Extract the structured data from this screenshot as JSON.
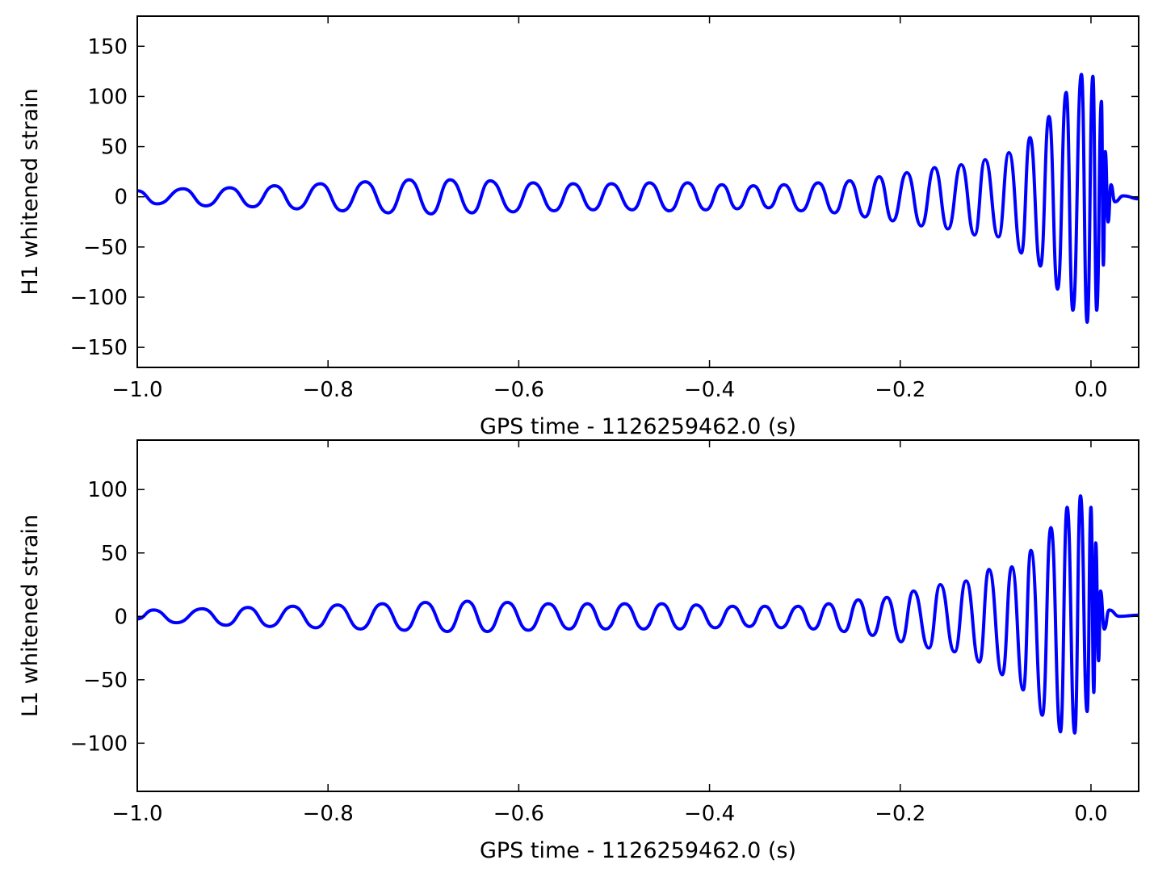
{
  "chart_data": [
    {
      "type": "line",
      "xlabel": "GPS time - 1126259462.0 (s)",
      "ylabel": "H1 whitened strain",
      "color": "#0000ff",
      "xlim": [
        -1.0,
        0.05
      ],
      "ylim": [
        -170,
        180
      ],
      "xticks": [
        {
          "value": -1.0,
          "label": "−1.0"
        },
        {
          "value": -0.8,
          "label": "−0.8"
        },
        {
          "value": -0.6,
          "label": "−0.6"
        },
        {
          "value": -0.4,
          "label": "−0.4"
        },
        {
          "value": -0.2,
          "label": "−0.2"
        },
        {
          "value": 0.0,
          "label": "0.0"
        }
      ],
      "yticks": [
        {
          "value": -150,
          "label": "−150"
        },
        {
          "value": -100,
          "label": "−100"
        },
        {
          "value": -50,
          "label": "−50"
        },
        0,
        50,
        100,
        150
      ],
      "x": [
        -1.0,
        -0.979,
        -0.952,
        -0.928,
        -0.903,
        -0.879,
        -0.856,
        -0.833,
        -0.808,
        -0.785,
        -0.761,
        -0.737,
        -0.715,
        -0.692,
        -0.672,
        -0.649,
        -0.63,
        -0.606,
        -0.585,
        -0.563,
        -0.543,
        -0.522,
        -0.503,
        -0.481,
        -0.463,
        -0.442,
        -0.423,
        -0.404,
        -0.387,
        -0.371,
        -0.354,
        -0.338,
        -0.322,
        -0.304,
        -0.286,
        -0.269,
        -0.253,
        -0.237,
        -0.222,
        -0.208,
        -0.193,
        -0.178,
        -0.164,
        -0.15,
        -0.136,
        -0.122,
        -0.111,
        -0.097,
        -0.086,
        -0.073,
        -0.064,
        -0.053,
        -0.044,
        -0.035,
        -0.026,
        -0.019,
        -0.01,
        -0.004,
        0.002,
        0.006,
        0.011,
        0.013,
        0.015,
        0.018,
        0.021,
        0.025,
        0.034,
        0.05
      ],
      "values": [
        6,
        -7,
        8,
        -9,
        9,
        -10,
        11,
        -12,
        13,
        -14,
        15,
        -16,
        17,
        -17,
        17,
        -16,
        16,
        -15,
        14,
        -14,
        13,
        -13,
        13,
        -13,
        14,
        -14,
        14,
        -13,
        12,
        -12,
        11,
        -11,
        12,
        -14,
        14,
        -16,
        16,
        -20,
        20,
        -24,
        24,
        -29,
        29,
        -32,
        32,
        -38,
        37,
        -40,
        44,
        -56,
        59,
        -69,
        80,
        -92,
        104,
        -113,
        122,
        -125,
        120,
        -113,
        95,
        -68,
        45,
        -25,
        12,
        -5,
        1,
        -2
      ]
    },
    {
      "type": "line",
      "xlabel": "GPS time - 1126259462.0 (s)",
      "ylabel": "L1 whitened strain",
      "color": "#0000ff",
      "xlim": [
        -1.0,
        0.05
      ],
      "ylim": [
        -138,
        139
      ],
      "xticks": [
        {
          "value": -1.0,
          "label": "−1.0"
        },
        {
          "value": -0.8,
          "label": "−0.8"
        },
        {
          "value": -0.6,
          "label": "−0.6"
        },
        {
          "value": -0.4,
          "label": "−0.4"
        },
        {
          "value": -0.2,
          "label": "−0.2"
        },
        {
          "value": 0.0,
          "label": "0.0"
        }
      ],
      "yticks": [
        {
          "value": -100,
          "label": "−100"
        },
        {
          "value": -50,
          "label": "−50"
        },
        0,
        50,
        100
      ],
      "x": [
        -1.0,
        -0.983,
        -0.959,
        -0.932,
        -0.907,
        -0.884,
        -0.861,
        -0.837,
        -0.813,
        -0.79,
        -0.766,
        -0.743,
        -0.72,
        -0.698,
        -0.675,
        -0.654,
        -0.633,
        -0.612,
        -0.59,
        -0.569,
        -0.547,
        -0.528,
        -0.509,
        -0.489,
        -0.469,
        -0.45,
        -0.431,
        -0.414,
        -0.394,
        -0.376,
        -0.358,
        -0.342,
        -0.325,
        -0.307,
        -0.291,
        -0.275,
        -0.259,
        -0.244,
        -0.229,
        -0.214,
        -0.199,
        -0.186,
        -0.17,
        -0.158,
        -0.143,
        -0.131,
        -0.117,
        -0.107,
        -0.093,
        -0.083,
        -0.071,
        -0.063,
        -0.051,
        -0.042,
        -0.032,
        -0.025,
        -0.017,
        -0.011,
        -0.004,
        0.0,
        0.003,
        0.005,
        0.008,
        0.01,
        0.014,
        0.019,
        0.03,
        0.05
      ],
      "values": [
        -2,
        5,
        -5,
        6,
        -7,
        7,
        -8,
        8,
        -9,
        9,
        -10,
        10,
        -11,
        11,
        -12,
        12,
        -12,
        11,
        -11,
        10,
        -10,
        10,
        -10,
        10,
        -10,
        10,
        -10,
        9,
        -9,
        8,
        -8,
        8,
        -9,
        8,
        -10,
        10,
        -12,
        13,
        -15,
        15,
        -20,
        20,
        -25,
        25,
        -28,
        28,
        -36,
        37,
        -46,
        39,
        -58,
        52,
        -78,
        70,
        -91,
        86,
        -92,
        95,
        -75,
        86,
        -60,
        58,
        -35,
        20,
        -10,
        5,
        0,
        1
      ]
    }
  ]
}
